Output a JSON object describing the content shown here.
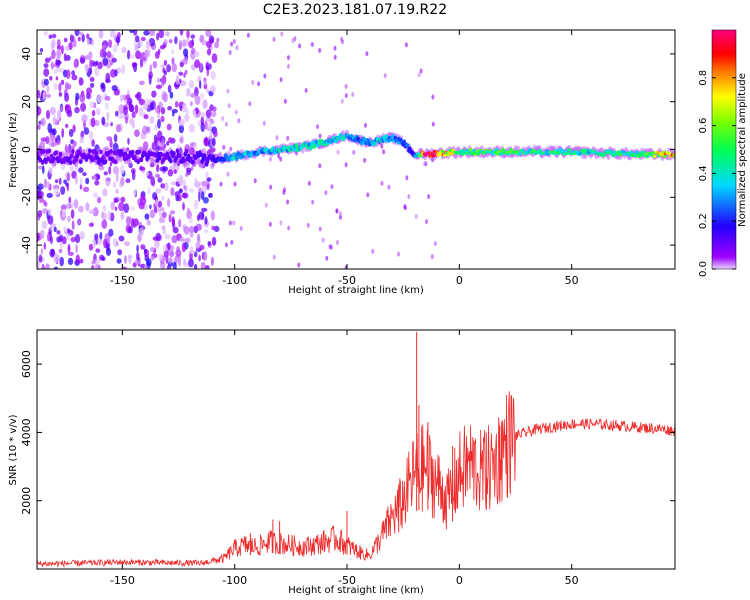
{
  "title": "C2E3.2023.181.07.19.R22",
  "chart_data": [
    {
      "type": "heatmap",
      "title": "C2E3.2023.181.07.19.R22",
      "xlabel": "Height of straight line (km)",
      "ylabel": "Frequency (Hz)",
      "xlim": [
        -188,
        96
      ],
      "ylim": [
        -50,
        50
      ],
      "xticks": [
        -150,
        -100,
        -50,
        0,
        50
      ],
      "yticks": [
        -40,
        -20,
        0,
        20,
        40
      ],
      "colorbar": {
        "label": "Normalized spectral amplitude",
        "range": [
          0.0,
          1.0
        ],
        "ticks": [
          0.0,
          0.2,
          0.4,
          0.6,
          0.8
        ],
        "colormap": "gist_rainbow_r",
        "underflow_color": "#ffffff"
      },
      "signal_ridge": {
        "x": [
          -180,
          -150,
          -120,
          -110,
          -100,
          -90,
          -80,
          -70,
          -60,
          -50,
          -45,
          -40,
          -35,
          -30,
          -25,
          -20,
          -15,
          0,
          20,
          50,
          80,
          96
        ],
        "freq": [
          -3,
          -3,
          -3,
          -4,
          -3,
          -1,
          0,
          1,
          3,
          6,
          4,
          3,
          4,
          5,
          3,
          -2,
          -2,
          -1,
          -1,
          -1,
          -2,
          -2
        ],
        "amplitude": [
          0.1,
          0.1,
          0.12,
          0.15,
          0.35,
          0.3,
          0.35,
          0.38,
          0.4,
          0.32,
          0.28,
          0.3,
          0.35,
          0.3,
          0.25,
          0.2,
          0.9,
          0.5,
          0.45,
          0.42,
          0.42,
          0.8
        ]
      },
      "description_note": "Broadband noise speckle for heights below -110 km; narrow Doppler signal near 0 Hz above -110 km."
    },
    {
      "type": "line",
      "xlabel": "Height of straight line (km)",
      "ylabel": "SNR (10 * v/v)",
      "xlim": [
        -188,
        96
      ],
      "ylim": [
        0,
        7000
      ],
      "xticks": [
        -150,
        -100,
        -50,
        0,
        50
      ],
      "yticks": [
        2000,
        4000,
        6000
      ],
      "series": [
        {
          "name": "SNR",
          "color": "#ee2b2b",
          "x": [
            -188,
            -170,
            -150,
            -130,
            -115,
            -105,
            -100,
            -95,
            -90,
            -85,
            -80,
            -75,
            -70,
            -65,
            -60,
            -55,
            -50,
            -45,
            -40,
            -35,
            -30,
            -25,
            -20,
            -15,
            -10,
            -5,
            0,
            5,
            10,
            15,
            20,
            25,
            30,
            35,
            40,
            50,
            60,
            70,
            80,
            90,
            96
          ],
          "y": [
            150,
            170,
            200,
            180,
            170,
            300,
            600,
            700,
            650,
            800,
            750,
            700,
            650,
            700,
            800,
            900,
            700,
            500,
            400,
            900,
            1500,
            2000,
            2800,
            3000,
            2500,
            2000,
            2800,
            3100,
            2800,
            3000,
            3600,
            3900,
            4000,
            4100,
            4150,
            4250,
            4250,
            4200,
            4150,
            4100,
            4050
          ],
          "spikes": [
            {
              "x": -93,
              "y": 1050
            },
            {
              "x": -83,
              "y": 1450
            },
            {
              "x": -80,
              "y": 1400
            },
            {
              "x": -50,
              "y": 1700
            },
            {
              "x": -27,
              "y": 2300
            },
            {
              "x": -19,
              "y": 6950
            },
            {
              "x": -18,
              "y": 4800
            },
            {
              "x": -14,
              "y": 4300
            },
            {
              "x": -3,
              "y": 3600
            },
            {
              "x": 12,
              "y": 4000
            },
            {
              "x": 18,
              "y": 4200
            }
          ]
        }
      ]
    }
  ]
}
